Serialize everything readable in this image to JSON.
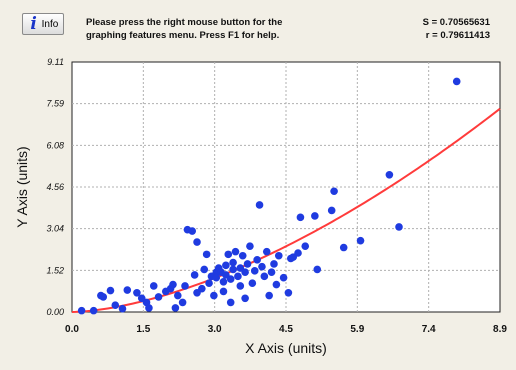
{
  "toolbar": {
    "info_label": "Info",
    "help_line1": "Please press the right mouse button for the",
    "help_line2": "graphing features menu.  Press F1 for help."
  },
  "stats": {
    "s_text": "S = 0.70565631",
    "r_text": "r = 0.79611413"
  },
  "colors": {
    "points": "#1f3be0",
    "fit_curve": "#ff3b3b",
    "background": "#f2efe6",
    "plot_area": "#ffffff",
    "grid": "#b0b0b0"
  },
  "chart_data": {
    "type": "scatter",
    "xlabel": "X Axis (units)",
    "ylabel": "Y Axis (units)",
    "xlim": [
      0.0,
      8.9
    ],
    "ylim": [
      0.0,
      9.11
    ],
    "x_ticks": [
      "0.0",
      "1.5",
      "3.0",
      "4.5",
      "5.9",
      "7.4",
      "8.9"
    ],
    "y_ticks": [
      "0.00",
      "1.52",
      "3.04",
      "4.56",
      "6.08",
      "7.59",
      "9.11"
    ],
    "grid": true,
    "points": [
      [
        0.2,
        0.05
      ],
      [
        0.45,
        0.05
      ],
      [
        0.6,
        0.6
      ],
      [
        0.65,
        0.55
      ],
      [
        0.8,
        0.78
      ],
      [
        0.9,
        0.25
      ],
      [
        1.05,
        0.12
      ],
      [
        1.15,
        0.8
      ],
      [
        1.35,
        0.7
      ],
      [
        1.45,
        0.5
      ],
      [
        1.55,
        0.35
      ],
      [
        1.6,
        0.15
      ],
      [
        1.7,
        0.95
      ],
      [
        1.8,
        0.55
      ],
      [
        1.95,
        0.75
      ],
      [
        2.05,
        0.85
      ],
      [
        2.1,
        1.0
      ],
      [
        2.15,
        0.15
      ],
      [
        2.2,
        0.6
      ],
      [
        2.3,
        0.35
      ],
      [
        2.35,
        0.95
      ],
      [
        2.4,
        3.0
      ],
      [
        2.5,
        2.95
      ],
      [
        2.55,
        1.35
      ],
      [
        2.6,
        2.55
      ],
      [
        2.6,
        0.7
      ],
      [
        2.7,
        0.85
      ],
      [
        2.75,
        1.55
      ],
      [
        2.8,
        2.1
      ],
      [
        2.85,
        1.05
      ],
      [
        2.9,
        1.3
      ],
      [
        2.95,
        0.6
      ],
      [
        3.0,
        1.45
      ],
      [
        3.0,
        1.25
      ],
      [
        3.05,
        1.6
      ],
      [
        3.1,
        1.45
      ],
      [
        3.15,
        1.1
      ],
      [
        3.15,
        0.75
      ],
      [
        3.2,
        1.7
      ],
      [
        3.2,
        1.35
      ],
      [
        3.25,
        2.1
      ],
      [
        3.3,
        1.2
      ],
      [
        3.3,
        0.35
      ],
      [
        3.35,
        1.55
      ],
      [
        3.35,
        1.8
      ],
      [
        3.4,
        2.2
      ],
      [
        3.45,
        1.3
      ],
      [
        3.5,
        0.95
      ],
      [
        3.5,
        1.6
      ],
      [
        3.55,
        2.05
      ],
      [
        3.6,
        1.45
      ],
      [
        3.6,
        0.5
      ],
      [
        3.65,
        1.75
      ],
      [
        3.7,
        2.4
      ],
      [
        3.75,
        1.05
      ],
      [
        3.8,
        1.5
      ],
      [
        3.85,
        1.9
      ],
      [
        3.9,
        3.9
      ],
      [
        3.95,
        1.65
      ],
      [
        4.0,
        1.3
      ],
      [
        4.05,
        2.2
      ],
      [
        4.1,
        0.6
      ],
      [
        4.15,
        1.45
      ],
      [
        4.2,
        1.75
      ],
      [
        4.25,
        1.0
      ],
      [
        4.3,
        2.05
      ],
      [
        4.4,
        1.25
      ],
      [
        4.5,
        0.7
      ],
      [
        4.55,
        1.95
      ],
      [
        4.6,
        2.0
      ],
      [
        4.7,
        2.15
      ],
      [
        4.75,
        3.45
      ],
      [
        4.85,
        2.4
      ],
      [
        5.05,
        3.5
      ],
      [
        5.1,
        1.55
      ],
      [
        5.4,
        3.7
      ],
      [
        5.45,
        4.4
      ],
      [
        5.65,
        2.35
      ],
      [
        6.0,
        2.6
      ],
      [
        6.6,
        5.0
      ],
      [
        6.8,
        3.1
      ],
      [
        8.0,
        8.4
      ]
    ],
    "fit_curve": {
      "type": "power",
      "a": 0.21,
      "b": 1.63
    }
  }
}
